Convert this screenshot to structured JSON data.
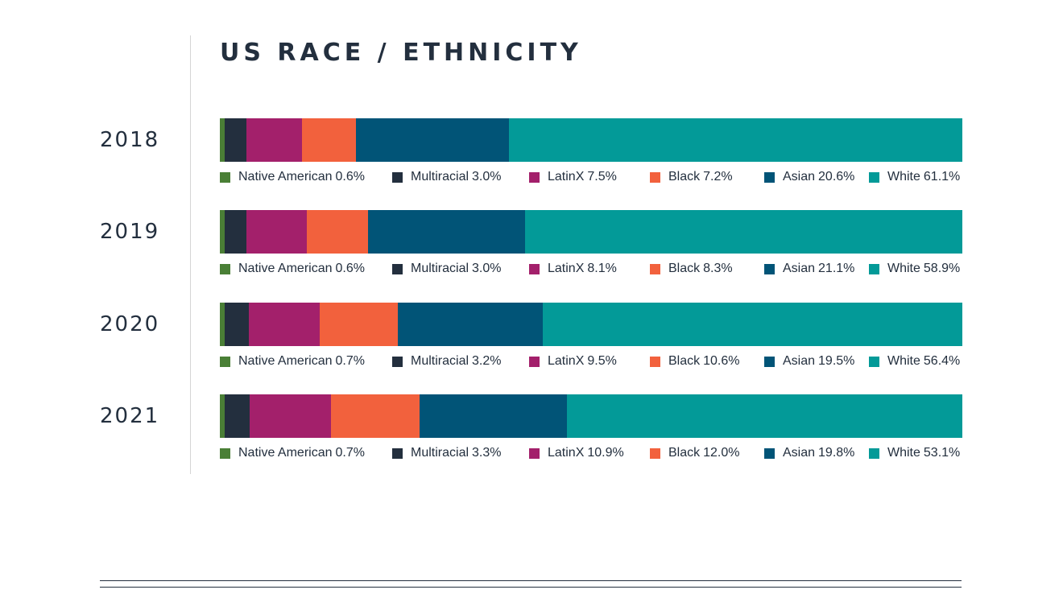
{
  "chart_data": {
    "type": "bar",
    "orientation": "horizontal",
    "stacked": true,
    "percent": true,
    "title": "US RACE / ETHNICITY",
    "categories": [
      "2018",
      "2019",
      "2020",
      "2021"
    ],
    "series": [
      {
        "name": "Native American",
        "color": "#4a7f36",
        "values": [
          0.6,
          0.6,
          0.7,
          0.7
        ]
      },
      {
        "name": "Multiracial",
        "color": "#232f3e",
        "values": [
          3.0,
          3.0,
          3.2,
          3.3
        ]
      },
      {
        "name": "LatinX",
        "color": "#a3206b",
        "values": [
          7.5,
          8.1,
          9.5,
          10.9
        ]
      },
      {
        "name": "Black",
        "color": "#f2613d",
        "values": [
          7.2,
          8.3,
          10.6,
          12.0
        ]
      },
      {
        "name": "Asian",
        "color": "#015477",
        "values": [
          20.6,
          21.1,
          19.5,
          19.8
        ]
      },
      {
        "name": "White",
        "color": "#039a98",
        "values": [
          61.1,
          58.9,
          56.4,
          53.1
        ]
      }
    ],
    "legend_placement": "below each bar",
    "grid": false
  }
}
